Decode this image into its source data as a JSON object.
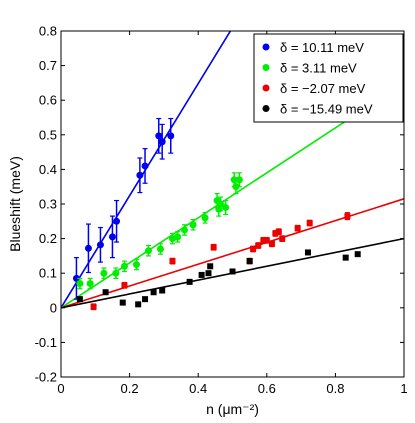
{
  "chart_data": {
    "type": "scatter",
    "xlabel": "n (μm⁻²)",
    "ylabel": "Blueshift (meV)",
    "xlim": [
      0,
      1
    ],
    "ylim": [
      -0.2,
      0.8
    ],
    "x_ticks": [
      "0",
      "0.2",
      "0.4",
      "0.6",
      "0.8",
      "1"
    ],
    "y_ticks": [
      "-0.2",
      "-0.1",
      "0",
      "0.1",
      "0.2",
      "0.3",
      "0.4",
      "0.5",
      "0.6",
      "0.7",
      "0.8"
    ],
    "grid": false,
    "legend_position": "top-right",
    "series": [
      {
        "name": "δ = 10.11 meV",
        "color": "#0000ee",
        "marker": "circle",
        "fit_slope": 1.62,
        "points": [
          {
            "x": 0.045,
            "y": 0.085,
            "err": 0.06
          },
          {
            "x": 0.08,
            "y": 0.172,
            "err": 0.07
          },
          {
            "x": 0.115,
            "y": 0.182,
            "err": 0.05
          },
          {
            "x": 0.15,
            "y": 0.205,
            "err": 0.06
          },
          {
            "x": 0.162,
            "y": 0.25,
            "err": 0.06
          },
          {
            "x": 0.23,
            "y": 0.383,
            "err": 0.05
          },
          {
            "x": 0.245,
            "y": 0.41,
            "err": 0.05
          },
          {
            "x": 0.285,
            "y": 0.497,
            "err": 0.05
          },
          {
            "x": 0.295,
            "y": 0.48,
            "err": 0.05
          },
          {
            "x": 0.32,
            "y": 0.497,
            "err": 0.05
          }
        ]
      },
      {
        "name": "δ = 3.11 meV",
        "color": "#00ee00",
        "marker": "circle",
        "fit_slope": 0.65,
        "points": [
          {
            "x": 0.055,
            "y": 0.07,
            "err": 0.015
          },
          {
            "x": 0.085,
            "y": 0.07,
            "err": 0.015
          },
          {
            "x": 0.125,
            "y": 0.1,
            "err": 0.015
          },
          {
            "x": 0.16,
            "y": 0.1,
            "err": 0.015
          },
          {
            "x": 0.185,
            "y": 0.12,
            "err": 0.015
          },
          {
            "x": 0.22,
            "y": 0.125,
            "err": 0.015
          },
          {
            "x": 0.255,
            "y": 0.165,
            "err": 0.015
          },
          {
            "x": 0.29,
            "y": 0.17,
            "err": 0.015
          },
          {
            "x": 0.325,
            "y": 0.2,
            "err": 0.015
          },
          {
            "x": 0.34,
            "y": 0.205,
            "err": 0.015
          },
          {
            "x": 0.36,
            "y": 0.225,
            "err": 0.015
          },
          {
            "x": 0.385,
            "y": 0.24,
            "err": 0.015
          },
          {
            "x": 0.42,
            "y": 0.26,
            "err": 0.015
          },
          {
            "x": 0.455,
            "y": 0.31,
            "err": 0.02
          },
          {
            "x": 0.46,
            "y": 0.285,
            "err": 0.02
          },
          {
            "x": 0.465,
            "y": 0.3,
            "err": 0.02
          },
          {
            "x": 0.48,
            "y": 0.29,
            "err": 0.02
          },
          {
            "x": 0.505,
            "y": 0.37,
            "err": 0.02
          },
          {
            "x": 0.51,
            "y": 0.35,
            "err": 0.02
          },
          {
            "x": 0.52,
            "y": 0.37,
            "err": 0.02
          }
        ]
      },
      {
        "name": "δ = −2.07 meV",
        "color": "#ee0000",
        "marker": "square",
        "fit_slope": 0.315,
        "points": [
          {
            "x": 0.095,
            "y": 0.003,
            "err": 0.008
          },
          {
            "x": 0.185,
            "y": 0.065,
            "err": 0.008
          },
          {
            "x": 0.325,
            "y": 0.135,
            "err": 0.008
          },
          {
            "x": 0.445,
            "y": 0.175,
            "err": 0.008
          },
          {
            "x": 0.55,
            "y": 0.135,
            "err": 0.008
          },
          {
            "x": 0.56,
            "y": 0.17,
            "err": 0.008
          },
          {
            "x": 0.575,
            "y": 0.18,
            "err": 0.008
          },
          {
            "x": 0.59,
            "y": 0.195,
            "err": 0.008
          },
          {
            "x": 0.6,
            "y": 0.195,
            "err": 0.008
          },
          {
            "x": 0.615,
            "y": 0.185,
            "err": 0.008
          },
          {
            "x": 0.625,
            "y": 0.215,
            "err": 0.008
          },
          {
            "x": 0.635,
            "y": 0.22,
            "err": 0.008
          },
          {
            "x": 0.645,
            "y": 0.2,
            "err": 0.008
          },
          {
            "x": 0.69,
            "y": 0.23,
            "err": 0.008
          },
          {
            "x": 0.725,
            "y": 0.245,
            "err": 0.008
          },
          {
            "x": 0.835,
            "y": 0.265,
            "err": 0.01
          }
        ]
      },
      {
        "name": "δ = −15.49 meV",
        "color": "#000000",
        "marker": "square",
        "fit_slope": 0.2,
        "points": [
          {
            "x": 0.055,
            "y": 0.025,
            "err": 0.006
          },
          {
            "x": 0.13,
            "y": 0.045,
            "err": 0.006
          },
          {
            "x": 0.18,
            "y": 0.015,
            "err": 0.006
          },
          {
            "x": 0.225,
            "y": 0.01,
            "err": 0.006
          },
          {
            "x": 0.245,
            "y": 0.025,
            "err": 0.006
          },
          {
            "x": 0.27,
            "y": 0.045,
            "err": 0.006
          },
          {
            "x": 0.295,
            "y": 0.05,
            "err": 0.006
          },
          {
            "x": 0.375,
            "y": 0.075,
            "err": 0.006
          },
          {
            "x": 0.41,
            "y": 0.095,
            "err": 0.006
          },
          {
            "x": 0.43,
            "y": 0.1,
            "err": 0.006
          },
          {
            "x": 0.435,
            "y": 0.12,
            "err": 0.006
          },
          {
            "x": 0.5,
            "y": 0.105,
            "err": 0.006
          },
          {
            "x": 0.55,
            "y": 0.135,
            "err": 0.006
          },
          {
            "x": 0.72,
            "y": 0.16,
            "err": 0.006
          },
          {
            "x": 0.83,
            "y": 0.145,
            "err": 0.006
          },
          {
            "x": 0.865,
            "y": 0.155,
            "err": 0.006
          }
        ]
      }
    ]
  }
}
